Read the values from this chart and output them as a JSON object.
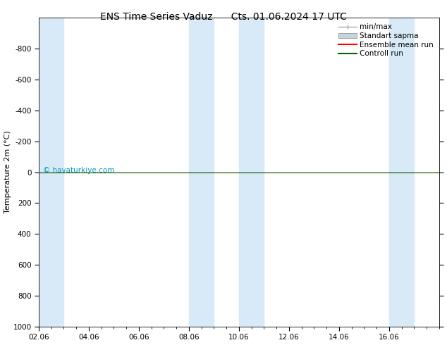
{
  "title": "ENS Time Series Vaduz      Cts. 01.06.2024 17 UTC",
  "ylabel": "Temperature 2m (°C)",
  "ylim_bottom": 1000,
  "ylim_top": -1000,
  "yticks": [
    -800,
    -600,
    -400,
    -200,
    0,
    200,
    400,
    600,
    800,
    1000
  ],
  "xtick_labels": [
    "02.06",
    "04.06",
    "06.06",
    "08.06",
    "10.06",
    "12.06",
    "14.06",
    "16.06"
  ],
  "xtick_positions": [
    0,
    2,
    4,
    6,
    8,
    10,
    12,
    14
  ],
  "x_min": 0,
  "x_max": 16,
  "background_color": "#ffffff",
  "plot_bg_color": "#ffffff",
  "band_positions": [
    [
      0,
      1
    ],
    [
      6,
      7
    ],
    [
      8,
      9
    ],
    [
      14,
      15
    ]
  ],
  "shaded_color": "#d8eaf7",
  "control_run_color": "#006600",
  "ensemble_mean_color": "#ff0000",
  "minmax_color": "#c8d4dc",
  "standart_color": "#c8d4dc",
  "legend_labels": [
    "min/max",
    "Standart sapma",
    "Ensemble mean run",
    "Controll run"
  ],
  "watermark": "© havaturkiye.com",
  "watermark_color": "#0099bb",
  "title_fontsize": 10,
  "axis_fontsize": 8,
  "tick_fontsize": 7.5,
  "legend_fontsize": 7.5
}
